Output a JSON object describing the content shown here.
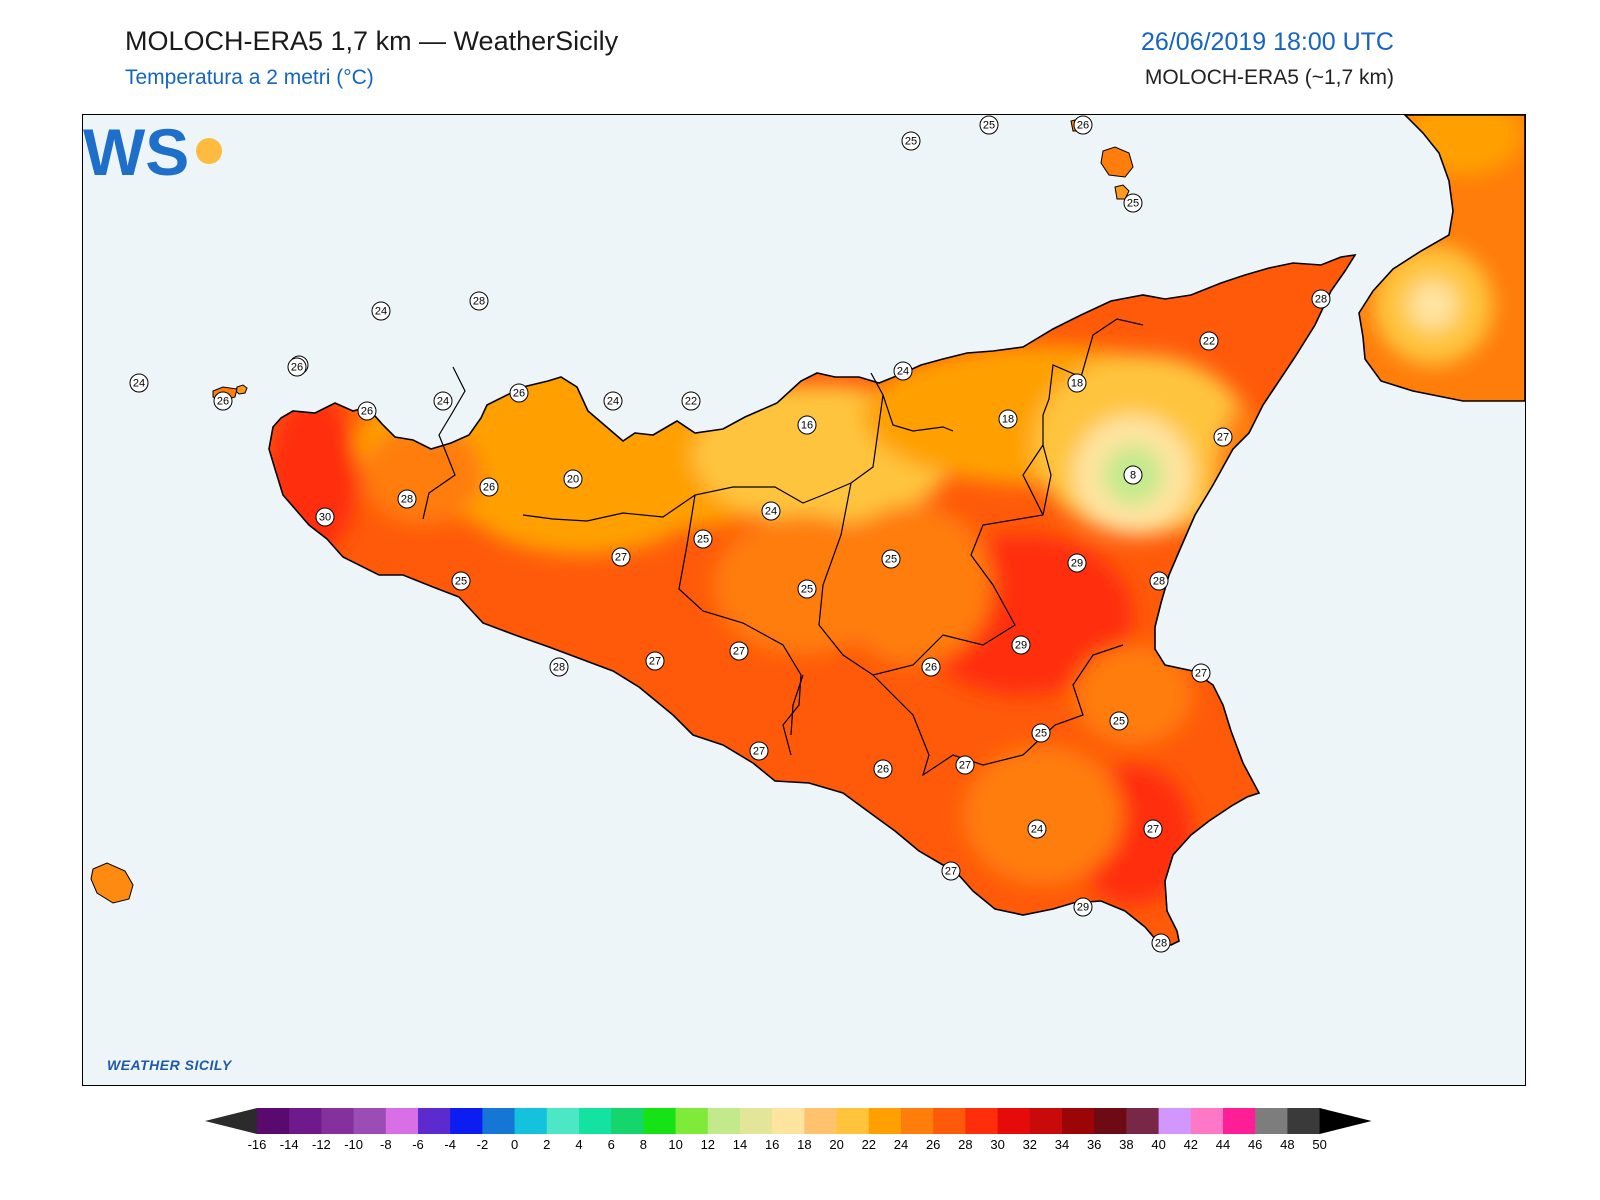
{
  "header": {
    "title": "MOLOCH-ERA5 1,7 km — WeatherSicily",
    "subtitle": "Temperatura a 2 metri (°C)",
    "datetime": "26/06/2019 18:00 UTC",
    "model": "MOLOCH-ERA5 (~1,7 km)"
  },
  "logo": {
    "letters": "WS",
    "name": "WEATHER SICILY"
  },
  "map": {
    "region": "Sicily",
    "colors": {
      "sea": "#eef5f9",
      "border": "#000000"
    },
    "station_values": [
      25,
      25,
      26,
      25,
      24,
      26,
      24,
      26,
      28,
      26,
      26,
      24,
      26,
      24,
      22,
      16,
      24,
      18,
      18,
      22,
      28,
      27,
      8,
      20,
      26,
      28,
      30,
      24,
      27,
      25,
      25,
      25,
      28,
      29,
      25,
      29,
      26,
      27,
      27,
      28,
      25,
      25,
      27,
      26,
      27,
      27,
      24,
      27,
      29,
      28,
      27
    ]
  },
  "colorbar": {
    "labels": [
      "-16",
      "-14",
      "-12",
      "-10",
      "-8",
      "-6",
      "-4",
      "-2",
      "0",
      "2",
      "4",
      "6",
      "8",
      "10",
      "12",
      "14",
      "16",
      "18",
      "20",
      "22",
      "24",
      "26",
      "28",
      "30",
      "32",
      "34",
      "36",
      "38",
      "40",
      "42",
      "44",
      "46",
      "48",
      "50"
    ],
    "colors": [
      "#3a003a",
      "#5a0a6e",
      "#6e1a8c",
      "#84319e",
      "#9b4cb5",
      "#d86fe6",
      "#5b2bd0",
      "#0b1df0",
      "#1676d6",
      "#14c2dd",
      "#4ce8c5",
      "#14e2a0",
      "#14d66c",
      "#16e316",
      "#80ea3a",
      "#c2ea8c",
      "#e3e698",
      "#ffe4a0",
      "#ffc36e",
      "#ffc43c",
      "#ffa000",
      "#ff7d0a",
      "#ff5a0a",
      "#ff2e0a",
      "#e60a0a",
      "#c80a0a",
      "#9b0505",
      "#6e0a14",
      "#782846",
      "#d296ff",
      "#ff78c8",
      "#ff1e96",
      "#7d7d7d",
      "#3a3a3a"
    ],
    "under_color": "#2b2b2b",
    "over_color": "#000000"
  }
}
